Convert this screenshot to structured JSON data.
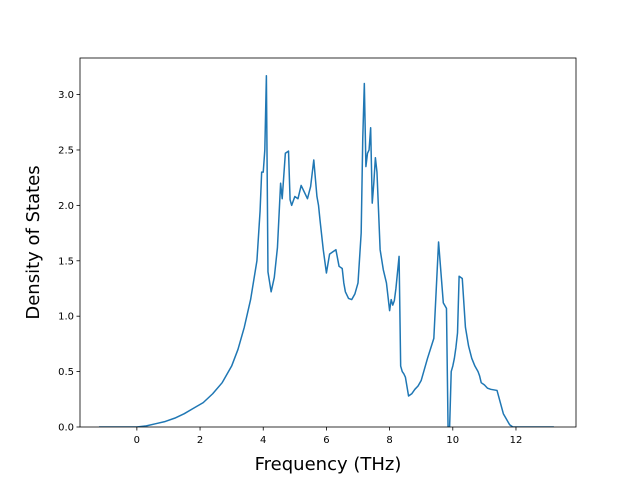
{
  "chart_data": {
    "type": "line",
    "title": "",
    "xlabel": "Frequency (THz)",
    "ylabel": "Density of States",
    "xlim": [
      -1.8,
      13.9
    ],
    "ylim": [
      0.0,
      3.33
    ],
    "xticks": [
      0,
      2,
      4,
      6,
      8,
      10,
      12
    ],
    "yticks": [
      0.0,
      0.5,
      1.0,
      1.5,
      2.0,
      2.5,
      3.0
    ],
    "xtick_labels": [
      "0",
      "2",
      "4",
      "6",
      "8",
      "10",
      "12"
    ],
    "ytick_labels": [
      "0.0",
      "0.5",
      "1.0",
      "1.5",
      "2.0",
      "2.5",
      "3.0"
    ],
    "grid": false,
    "line_color": "#1f77b4",
    "series": [
      {
        "x": [
          -1.2,
          -1.0,
          0.0,
          0.3,
          0.6,
          0.9,
          1.2,
          1.5,
          1.8,
          2.1,
          2.4,
          2.7,
          3.0,
          3.2,
          3.4,
          3.6,
          3.8,
          3.9,
          3.95,
          4.0,
          4.05,
          4.1,
          4.15,
          4.25,
          4.35,
          4.45,
          4.55,
          4.6,
          4.7,
          4.8,
          4.85,
          4.9,
          5.0,
          5.1,
          5.2,
          5.3,
          5.4,
          5.5,
          5.6,
          5.7,
          5.75,
          5.8,
          5.9,
          6.0,
          6.1,
          6.2,
          6.3,
          6.4,
          6.5,
          6.55,
          6.6,
          6.7,
          6.8,
          6.9,
          7.0,
          7.1,
          7.15,
          7.2,
          7.25,
          7.3,
          7.35,
          7.4,
          7.45,
          7.5,
          7.55,
          7.6,
          7.7,
          7.8,
          7.9,
          8.0,
          8.05,
          8.1,
          8.15,
          8.2,
          8.3,
          8.35,
          8.4,
          8.45,
          8.5,
          8.6,
          8.7,
          8.8,
          8.9,
          9.0,
          9.2,
          9.4,
          9.55,
          9.7,
          9.8,
          9.85,
          9.9,
          9.95,
          10.0,
          10.05,
          10.1,
          10.15,
          10.2,
          10.3,
          10.4,
          10.5,
          10.6,
          10.7,
          10.8,
          10.85,
          10.9,
          11.0,
          11.1,
          11.2,
          11.4,
          11.6,
          11.8,
          11.9,
          11.95,
          12.0,
          12.1,
          12.5,
          13.0,
          13.2
        ],
        "y": [
          0.0,
          0.0,
          0.0,
          0.01,
          0.03,
          0.05,
          0.08,
          0.12,
          0.17,
          0.22,
          0.3,
          0.4,
          0.55,
          0.7,
          0.9,
          1.15,
          1.5,
          1.95,
          2.3,
          2.3,
          2.5,
          3.17,
          1.4,
          1.22,
          1.35,
          1.62,
          2.2,
          2.06,
          2.47,
          2.49,
          2.05,
          2.0,
          2.08,
          2.06,
          2.18,
          2.12,
          2.06,
          2.17,
          2.41,
          2.08,
          2.0,
          1.86,
          1.6,
          1.39,
          1.56,
          1.58,
          1.6,
          1.45,
          1.43,
          1.3,
          1.22,
          1.16,
          1.15,
          1.2,
          1.3,
          1.75,
          2.6,
          3.1,
          2.35,
          2.47,
          2.5,
          2.7,
          2.02,
          2.2,
          2.43,
          2.3,
          1.6,
          1.42,
          1.3,
          1.05,
          1.15,
          1.1,
          1.14,
          1.25,
          1.54,
          0.55,
          0.5,
          0.48,
          0.45,
          0.28,
          0.3,
          0.34,
          0.37,
          0.42,
          0.62,
          0.8,
          1.67,
          1.12,
          1.07,
          0.0,
          0.0,
          0.5,
          0.55,
          0.62,
          0.72,
          0.85,
          1.36,
          1.34,
          0.9,
          0.73,
          0.62,
          0.55,
          0.5,
          0.46,
          0.4,
          0.38,
          0.35,
          0.34,
          0.33,
          0.12,
          0.02,
          0.0,
          0.0,
          0.0,
          0.0,
          0.0,
          0.0,
          0.0
        ]
      }
    ]
  }
}
